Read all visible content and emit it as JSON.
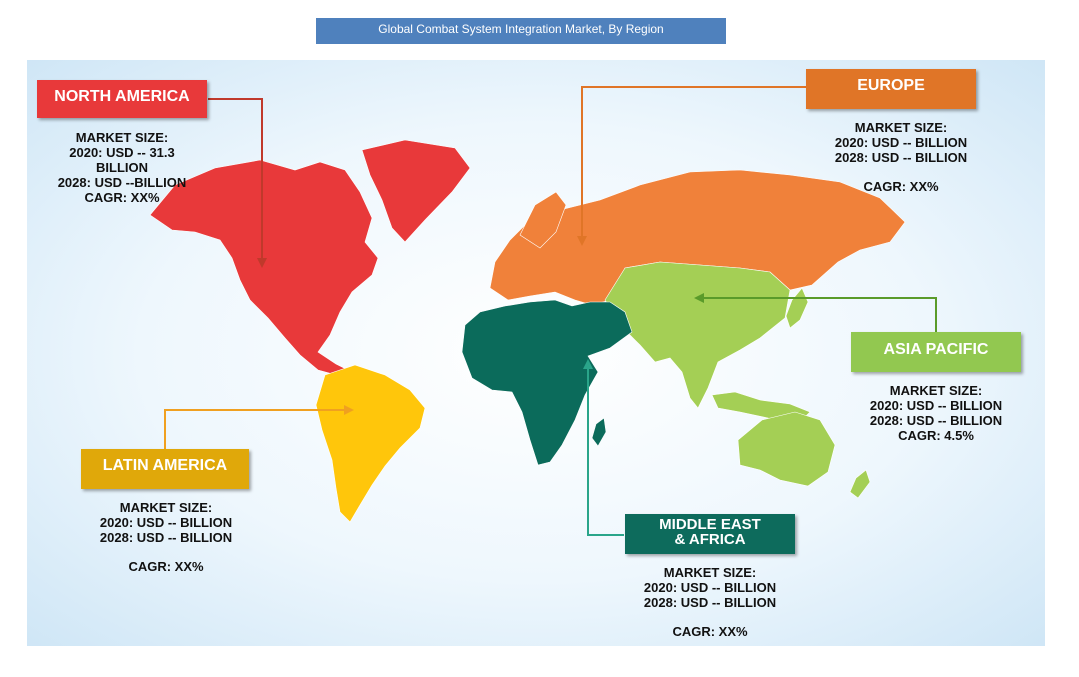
{
  "title": "Global  Combat System Integration Market, By Region",
  "colors": {
    "north_america": "#e8393a",
    "europe": "#f0813a",
    "europe_box": "#e07527",
    "asia_pacific": "#a4cf55",
    "asia_pacific_box": "#92c850",
    "latin_america": "#ffc60b",
    "latin_america_box": "#e0a80a",
    "mea": "#0b6b5b",
    "mea_box": "#0d6b5c",
    "title_bar": "#4f81bd"
  },
  "regions": {
    "north_america": {
      "name": "NORTH  AMERICA",
      "market_size": "MARKET SIZE:",
      "line_2020a": "2020: USD -- 31.3",
      "line_2020b": "BILLION",
      "line_2028": "2028: USD --BILLION",
      "cagr": "CAGR: XX%"
    },
    "europe": {
      "name": "EUROPE",
      "market_size": "MARKET SIZE:",
      "line_2020": "2020: USD -- BILLION",
      "line_2028": "2028: USD -- BILLION",
      "cagr": "CAGR: XX%"
    },
    "asia_pacific": {
      "name": "ASIA PACIFIC",
      "market_size": "MARKET SIZE:",
      "line_2020": "2020: USD --  BILLION",
      "line_2028": "2028: USD -- BILLION",
      "cagr": "CAGR: 4.5%"
    },
    "latin_america": {
      "name": "LATIN  AMERICA",
      "market_size": "MARKET SIZE:",
      "line_2020": "2020: USD -- BILLION",
      "line_2028": "2028: USD -- BILLION",
      "cagr": "CAGR: XX%"
    },
    "mea": {
      "name_line1": "MIDDLE EAST",
      "name_line2": "& AFRICA",
      "market_size": "MARKET SIZE:",
      "line_2020": "2020: USD -- BILLION",
      "line_2028": "2028: USD -- BILLION",
      "cagr": "CAGR: XX%"
    }
  }
}
